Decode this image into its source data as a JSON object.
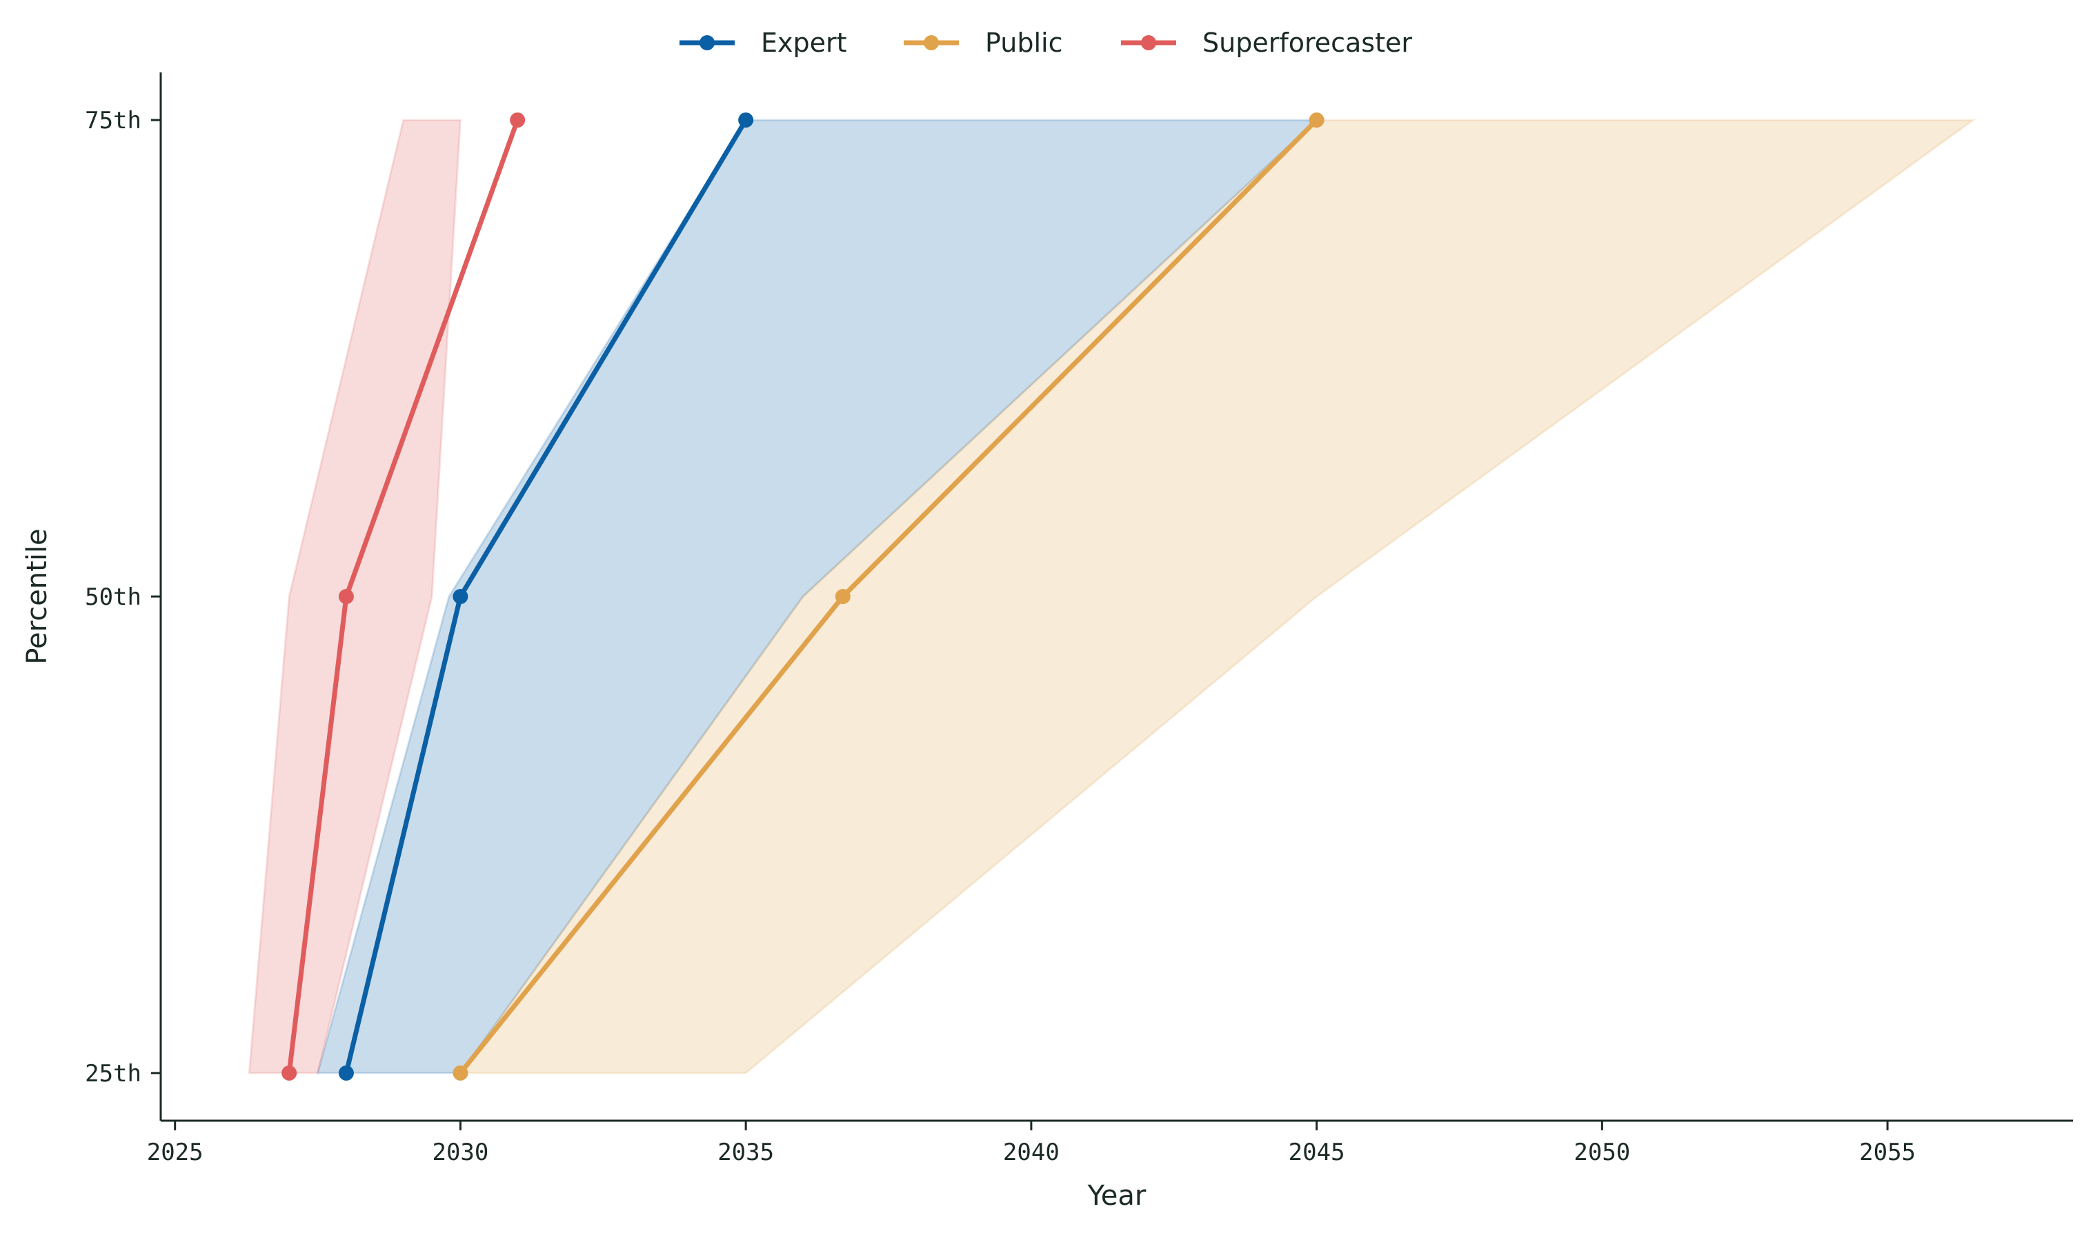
{
  "chart_data": {
    "type": "line",
    "title": "",
    "xlabel": "Year",
    "ylabel": "Percentile",
    "xlim": [
      2024.75,
      2058.25
    ],
    "ylim": [
      22.5,
      77.5
    ],
    "x_ticks": [
      2025,
      2030,
      2035,
      2040,
      2045,
      2050,
      2055
    ],
    "x_tick_labels": [
      "2025",
      "2030",
      "2035",
      "2040",
      "2045",
      "2050",
      "2055"
    ],
    "y_ticks": [
      25,
      50,
      75
    ],
    "y_tick_labels": [
      "25th",
      "50th",
      "75th"
    ],
    "grid": false,
    "legend_position": "top-center",
    "series": [
      {
        "name": "Expert",
        "color": "#0b5fa5",
        "points": [
          [
            2028,
            25
          ],
          [
            2030,
            50
          ],
          [
            2035,
            75
          ]
        ],
        "band_low": [
          [
            2027.5,
            25
          ],
          [
            2029.8,
            50
          ],
          [
            2035,
            75
          ]
        ],
        "band_high": [
          [
            2030,
            25
          ],
          [
            2036,
            50
          ],
          [
            2045,
            75
          ]
        ]
      },
      {
        "name": "Public",
        "color": "#e0a24b",
        "points": [
          [
            2030,
            25
          ],
          [
            2036.7,
            50
          ],
          [
            2045,
            75
          ]
        ],
        "band_low": [
          [
            2030,
            25
          ],
          [
            2036,
            50
          ],
          [
            2045,
            75
          ]
        ],
        "band_high": [
          [
            2035,
            25
          ],
          [
            2045,
            50
          ],
          [
            2056.5,
            75
          ]
        ]
      },
      {
        "name": "Superforecaster",
        "color": "#e05c5c",
        "points": [
          [
            2027,
            25
          ],
          [
            2028,
            50
          ],
          [
            2031,
            75
          ]
        ],
        "band_low": [
          [
            2026.3,
            25
          ],
          [
            2027,
            50
          ],
          [
            2029,
            75
          ]
        ],
        "band_high": [
          [
            2027.5,
            25
          ],
          [
            2029.5,
            50
          ],
          [
            2030,
            75
          ]
        ]
      }
    ]
  }
}
